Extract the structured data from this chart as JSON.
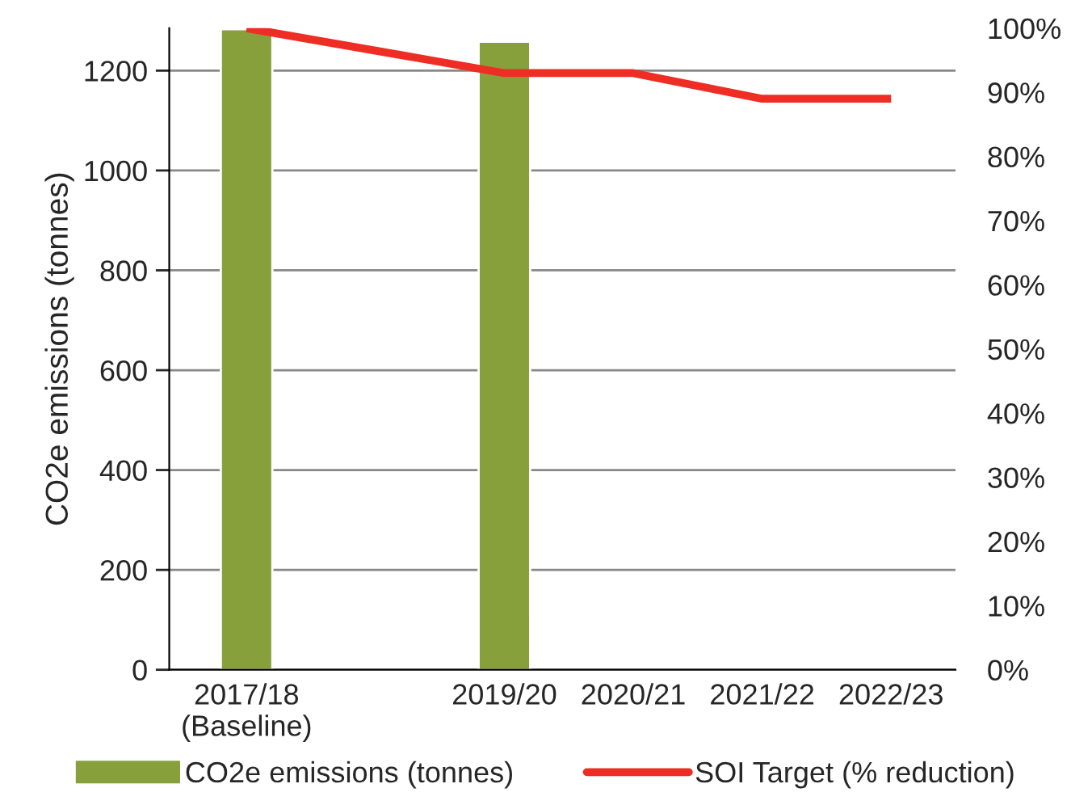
{
  "chart_data": {
    "type": "bar",
    "categories": [
      "2017/18\n(Baseline)",
      null,
      "2019/20",
      "2020/21",
      "2021/22",
      "2022/23"
    ],
    "series": [
      {
        "name": "CO2e emissions (tonnes)",
        "color": "#88a03c",
        "values": [
          1283,
          null,
          1258,
          null,
          null,
          null
        ]
      },
      {
        "name": "SOI Target (% reduction)",
        "type": "line",
        "axis": "y2",
        "color": "#ee2e24",
        "values": [
          100,
          null,
          93,
          93,
          89,
          89
        ]
      }
    ],
    "ylabel": "CO2e emissions (tonnes)",
    "ylim": [
      0,
      1285
    ],
    "yticks": [
      0,
      200,
      400,
      600,
      800,
      1000,
      1200
    ],
    "y2lim": [
      0,
      100
    ],
    "y2ticks": [
      {
        "value": 0,
        "label": "0%"
      },
      {
        "value": 10,
        "label": "10%"
      },
      {
        "value": 20,
        "label": "20%"
      },
      {
        "value": 30,
        "label": "30%"
      },
      {
        "value": 40,
        "label": "40%"
      },
      {
        "value": 50,
        "label": "50%"
      },
      {
        "value": 60,
        "label": "60%"
      },
      {
        "value": 70,
        "label": "70%"
      },
      {
        "value": 80,
        "label": "80%"
      },
      {
        "value": 90,
        "label": "90%"
      },
      {
        "value": 100,
        "label": "100%"
      }
    ],
    "grid": "y",
    "legend": "bottom",
    "marker": "none",
    "line_style": "solid"
  }
}
